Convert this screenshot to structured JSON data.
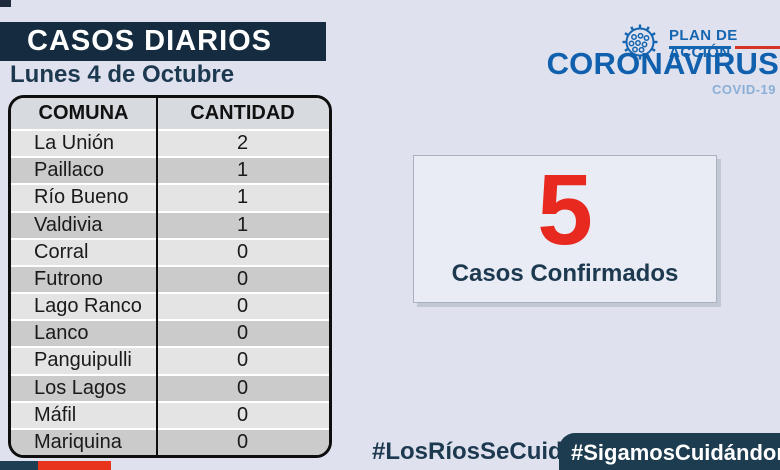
{
  "page": {
    "title_banner": "CASOS DIARIOS",
    "date": "Lunes 4 de Octubre"
  },
  "brand": {
    "plan_label": "PLAN DE ACCIÓN",
    "name": "CORONAVIRUS",
    "subtitle": "COVID-19"
  },
  "table": {
    "headers": [
      "COMUNA",
      "CANTIDAD"
    ],
    "rows": [
      {
        "comuna": "La Unión",
        "cantidad": "2"
      },
      {
        "comuna": "Paillaco",
        "cantidad": "1"
      },
      {
        "comuna": "Río Bueno",
        "cantidad": "1"
      },
      {
        "comuna": "Valdivia",
        "cantidad": "1"
      },
      {
        "comuna": "Corral",
        "cantidad": "0"
      },
      {
        "comuna": "Futrono",
        "cantidad": "0"
      },
      {
        "comuna": "Lago Ranco",
        "cantidad": "0"
      },
      {
        "comuna": "Lanco",
        "cantidad": "0"
      },
      {
        "comuna": "Panguipulli",
        "cantidad": "0"
      },
      {
        "comuna": "Los Lagos",
        "cantidad": "0"
      },
      {
        "comuna": "Máfil",
        "cantidad": "0"
      },
      {
        "comuna": "Mariquina",
        "cantidad": "0"
      }
    ]
  },
  "summary_card": {
    "value": "5",
    "label": "Casos Confirmados"
  },
  "hashtags": {
    "left": "#LosRíosSeCuida",
    "right": "#SigamosCuidándono"
  },
  "colors": {
    "page_bg": "#dfe2ee",
    "banner_navy": "#152c40",
    "brand_blue": "#1060ae",
    "accent_red": "#e8291f",
    "covid_light_blue": "#8aaed6",
    "row_light": "#e4e4e4",
    "row_dark": "#cbcbcb",
    "hashtag_banner_navy": "#1d3c50",
    "stripe_red": "#e8341c"
  },
  "chart_data": {
    "type": "table",
    "title": "CASOS DIARIOS",
    "subtitle": "Lunes 4 de Octubre",
    "columns": [
      "COMUNA",
      "CANTIDAD"
    ],
    "rows": [
      [
        "La Unión",
        2
      ],
      [
        "Paillaco",
        1
      ],
      [
        "Río Bueno",
        1
      ],
      [
        "Valdivia",
        1
      ],
      [
        "Corral",
        0
      ],
      [
        "Futrono",
        0
      ],
      [
        "Lago Ranco",
        0
      ],
      [
        "Lanco",
        0
      ],
      [
        "Panguipulli",
        0
      ],
      [
        "Los Lagos",
        0
      ],
      [
        "Máfil",
        0
      ],
      [
        "Mariquina",
        0
      ]
    ],
    "total_value": 5,
    "total_label": "Casos Confirmados"
  }
}
